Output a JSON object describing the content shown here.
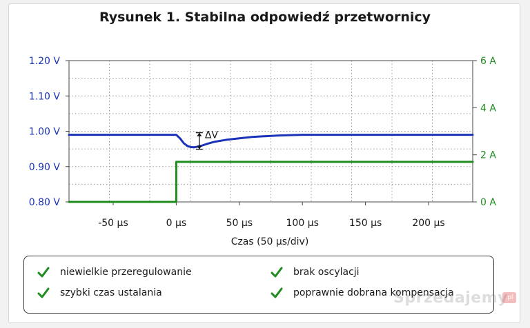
{
  "chart_data": {
    "type": "line",
    "title": "Rysunek 1. Stabilna odpowiedź przetwornicy",
    "xlabel": "Czas (50 µs/div)",
    "x_ticks": [
      "-50 µs",
      "0 µs",
      "50 µs",
      "100 µs",
      "150 µs",
      "200 µs"
    ],
    "x_tick_values": [
      -50,
      0,
      50,
      100,
      150,
      200
    ],
    "xlim": [
      -85,
      235
    ],
    "left_axis": {
      "ticks": [
        "0.80 V",
        "0.90 V",
        "1.00 V",
        "1.10 V",
        "1.20 V"
      ],
      "tick_values": [
        0.8,
        0.9,
        1.0,
        1.1,
        1.2
      ],
      "ylim": [
        0.8,
        1.2
      ],
      "color": "#1a33b8"
    },
    "right_axis": {
      "ticks": [
        "0 A",
        "2 A",
        "4 A",
        "6 A"
      ],
      "tick_values": [
        0,
        2,
        4,
        6
      ],
      "ylim": [
        0,
        6
      ],
      "color": "#1e8c1e"
    },
    "series": [
      {
        "axis": "left",
        "color": "#1a33b8",
        "x": [
          -85,
          0,
          3,
          6,
          9,
          12,
          15,
          20,
          25,
          30,
          40,
          50,
          60,
          70,
          80,
          90,
          100,
          120,
          150,
          200,
          235
        ],
        "y": [
          0.99,
          0.99,
          0.98,
          0.966,
          0.958,
          0.955,
          0.955,
          0.959,
          0.965,
          0.97,
          0.976,
          0.98,
          0.984,
          0.986,
          0.988,
          0.989,
          0.99,
          0.99,
          0.99,
          0.99,
          0.99
        ]
      },
      {
        "axis": "right",
        "color": "#1e8c1e",
        "x": [
          -85,
          0,
          0,
          235
        ],
        "y": [
          0.0,
          0.0,
          1.7,
          1.7
        ]
      }
    ],
    "annotation": {
      "text": "ΔV",
      "x": 15,
      "y_top": 0.99,
      "y_bottom": 0.955
    },
    "grid": true
  },
  "legend": {
    "items": [
      "niewielkie przeregulowanie",
      "brak oscylacji",
      "szybki czas ustalania",
      "poprawnie dobrana kompensacja"
    ]
  },
  "watermark": {
    "text": "Sprzedajemy",
    "badge": ".pl"
  }
}
